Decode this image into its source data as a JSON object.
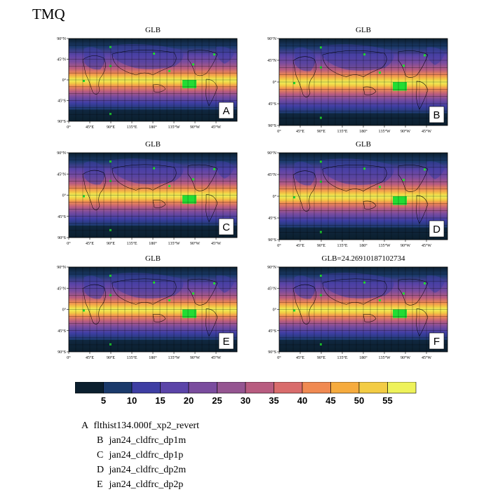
{
  "title": "TMQ",
  "chart_data": {
    "type": "heatmap",
    "variable": "TMQ",
    "panels": [
      {
        "letter": "A",
        "title": "GLB"
      },
      {
        "letter": "B",
        "title": "GLB"
      },
      {
        "letter": "C",
        "title": "GLB"
      },
      {
        "letter": "D",
        "title": "GLB"
      },
      {
        "letter": "E",
        "title": "GLB"
      },
      {
        "letter": "F",
        "title": "GLB=24.26910187102734"
      }
    ],
    "lat_ticks": [
      "90°N",
      "45°N",
      "0°",
      "45°S",
      "90°S"
    ],
    "lon_ticks": [
      "0°",
      "45°E",
      "90°E",
      "135°E",
      "180°",
      "135°W",
      "90°W",
      "45°W"
    ],
    "colorbar": {
      "levels": [
        "5",
        "10",
        "15",
        "20",
        "25",
        "30",
        "35",
        "40",
        "45",
        "50",
        "55"
      ],
      "colors": [
        "#0b1f2e",
        "#1b3a6b",
        "#3e3ea3",
        "#5b44a8",
        "#7a4c9e",
        "#955591",
        "#b85c80",
        "#d96c6c",
        "#f08a52",
        "#f6ab3e",
        "#f3cc44",
        "#eef25a"
      ]
    },
    "legend": [
      {
        "key": "A",
        "label": "flthist134.000f_xp2_revert"
      },
      {
        "key": "B",
        "label": "jan24_cldfrc_dp1m"
      },
      {
        "key": "C",
        "label": "jan24_cldfrc_dp1p"
      },
      {
        "key": "D",
        "label": "jan24_cldfrc_dp2m"
      },
      {
        "key": "E",
        "label": "jan24_cldfrc_dp2p"
      }
    ]
  }
}
